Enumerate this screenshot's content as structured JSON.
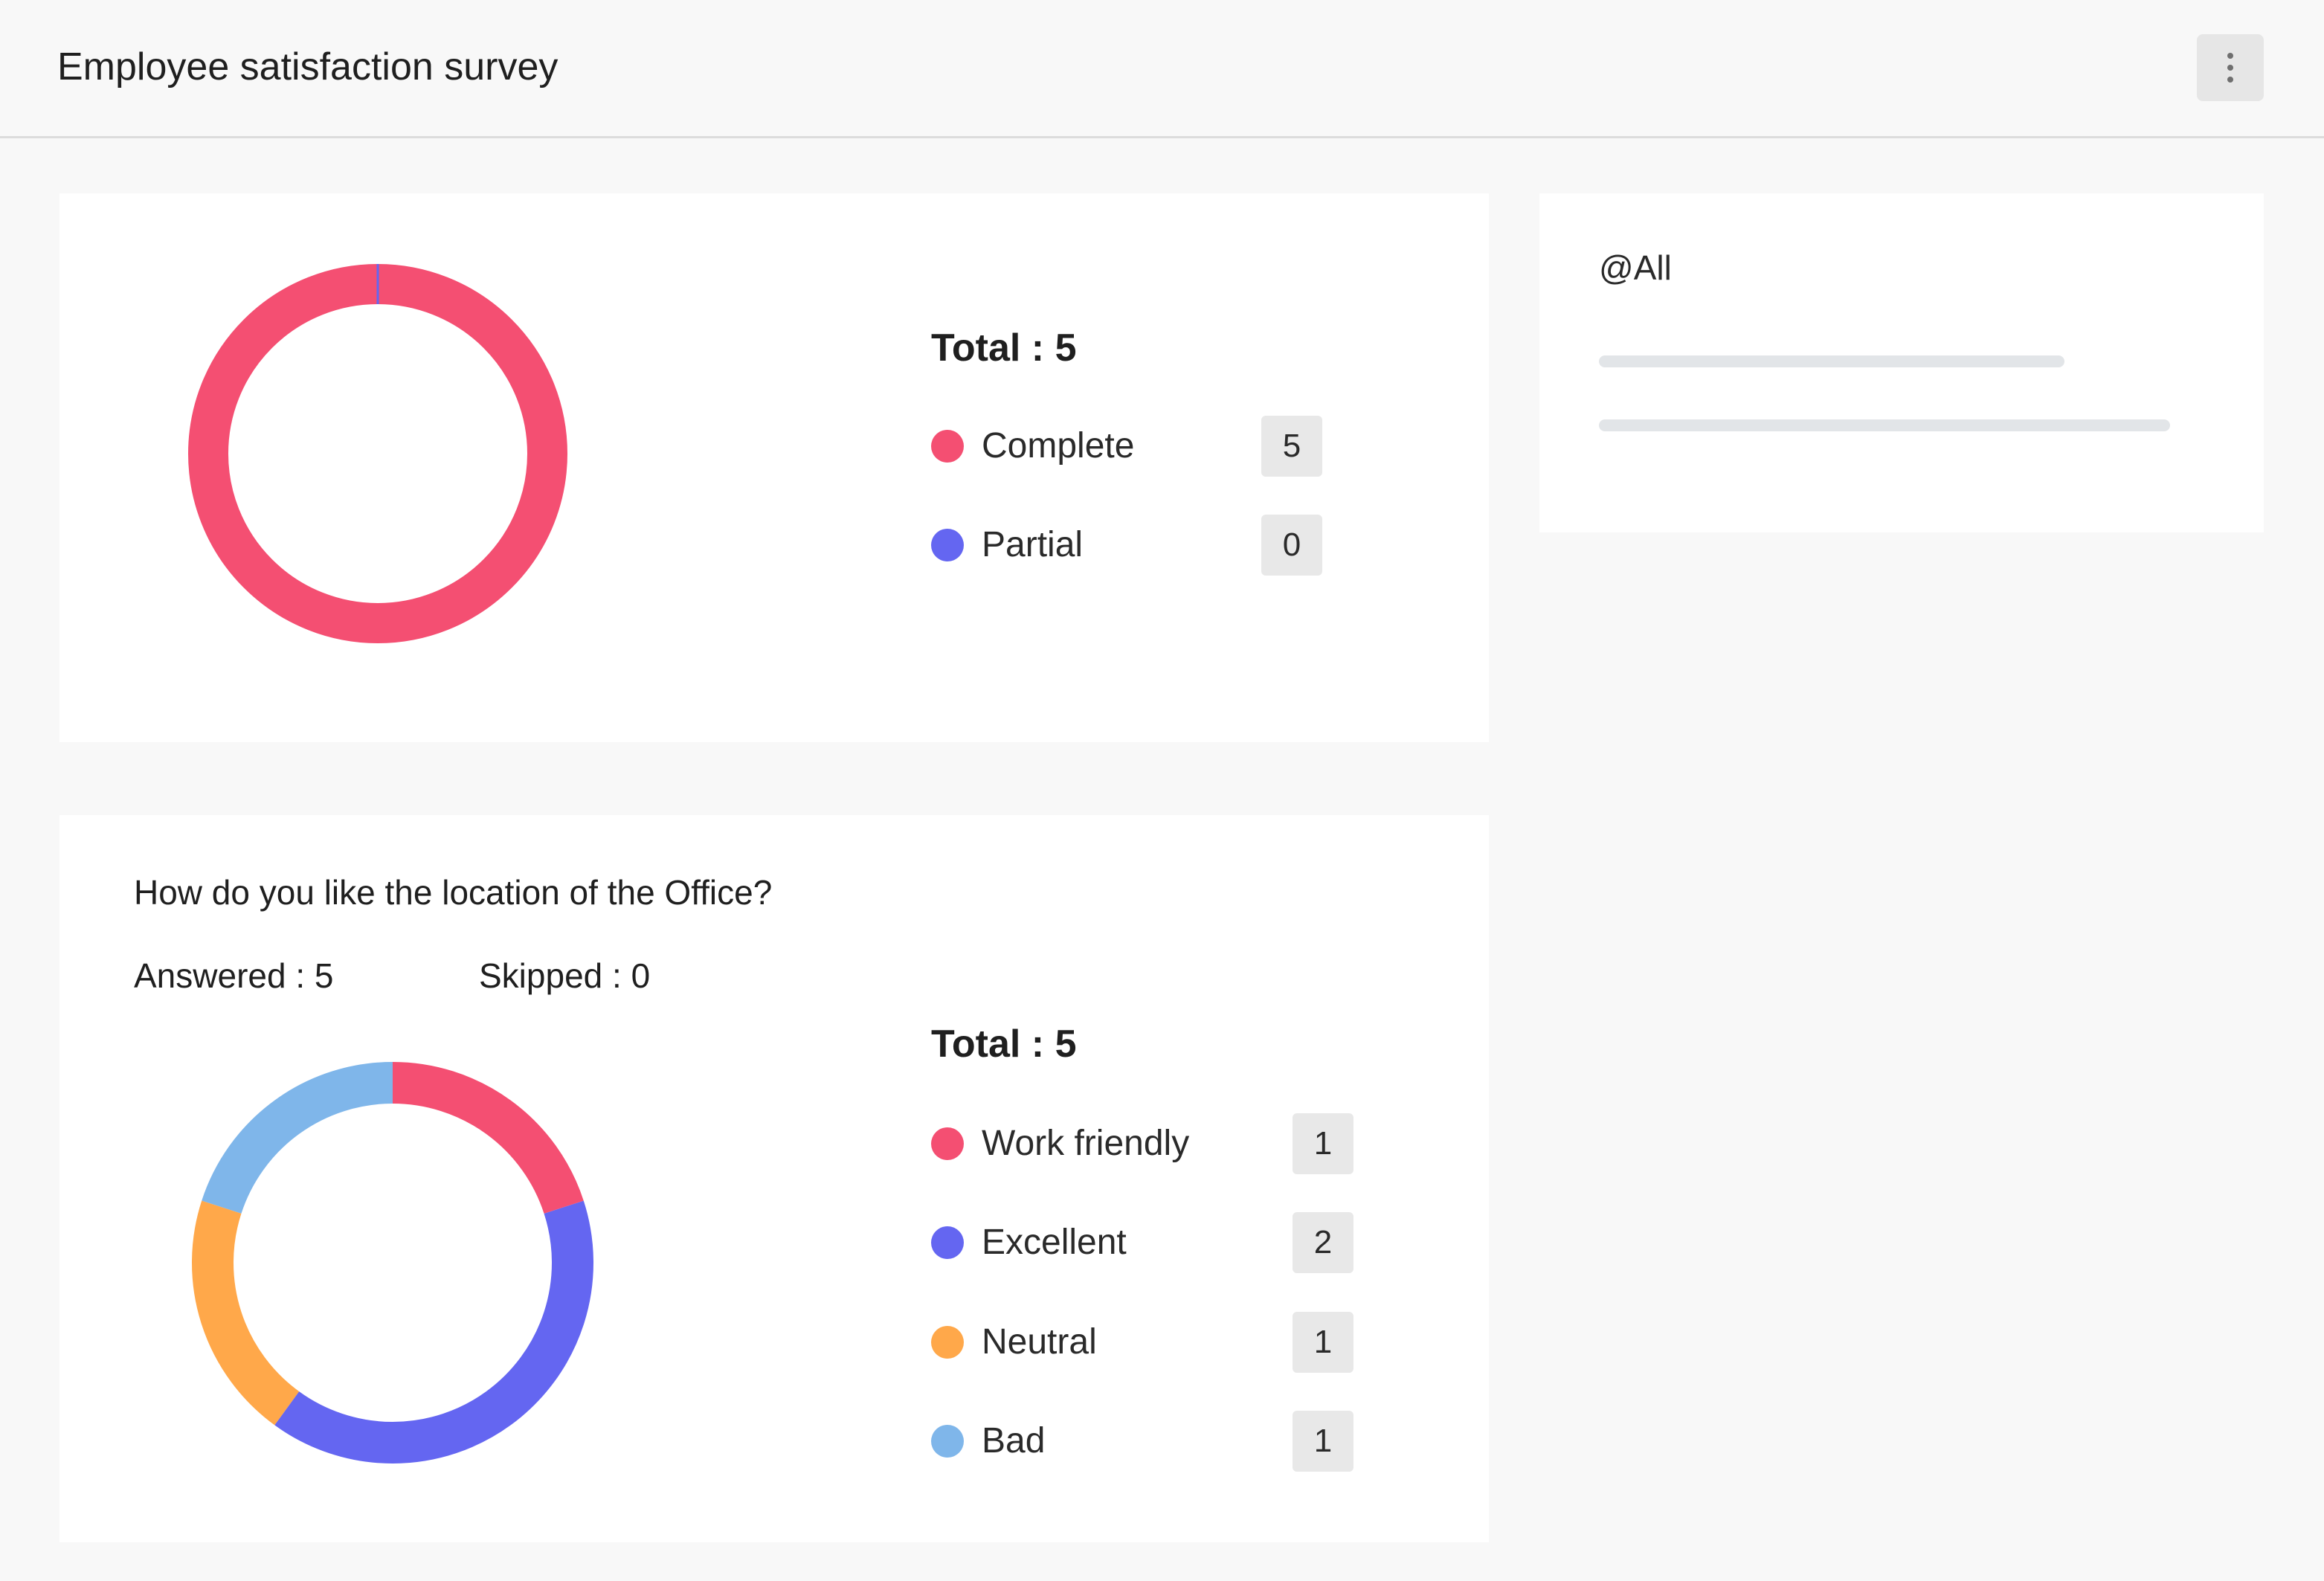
{
  "header": {
    "title": "Employee satisfaction survey",
    "menu_icon": "more-vertical-icon"
  },
  "summary": {
    "total_label": "Total : 5",
    "items": [
      {
        "label": "Complete",
        "count": "5",
        "color": "#f44f72"
      },
      {
        "label": "Partial",
        "count": "0",
        "color": "#6466f1"
      }
    ]
  },
  "question": {
    "text": "How do you like the location of the Office?",
    "answered": "Answered : 5",
    "skipped": "Skipped : 0",
    "total_label": "Total : 5",
    "items": [
      {
        "label": "Work friendly",
        "count": "1",
        "color": "#f44f72"
      },
      {
        "label": "Excellent",
        "count": "2",
        "color": "#6466f1"
      },
      {
        "label": "Neutral",
        "count": "1",
        "color": "#ffa84a"
      },
      {
        "label": "Bad",
        "count": "1",
        "color": "#7fb6ea"
      }
    ]
  },
  "audience": {
    "label": "@All"
  },
  "chart_data": [
    {
      "type": "pie",
      "categories": [
        "Complete",
        "Partial"
      ],
      "values": [
        5,
        0
      ],
      "colors": [
        "#f44f72",
        "#6466f1"
      ],
      "title": ""
    },
    {
      "type": "pie",
      "categories": [
        "Work friendly",
        "Excellent",
        "Neutral",
        "Bad"
      ],
      "values": [
        1,
        2,
        1,
        1
      ],
      "colors": [
        "#f44f72",
        "#6466f1",
        "#ffa84a",
        "#7fb6ea"
      ],
      "title": ""
    }
  ]
}
